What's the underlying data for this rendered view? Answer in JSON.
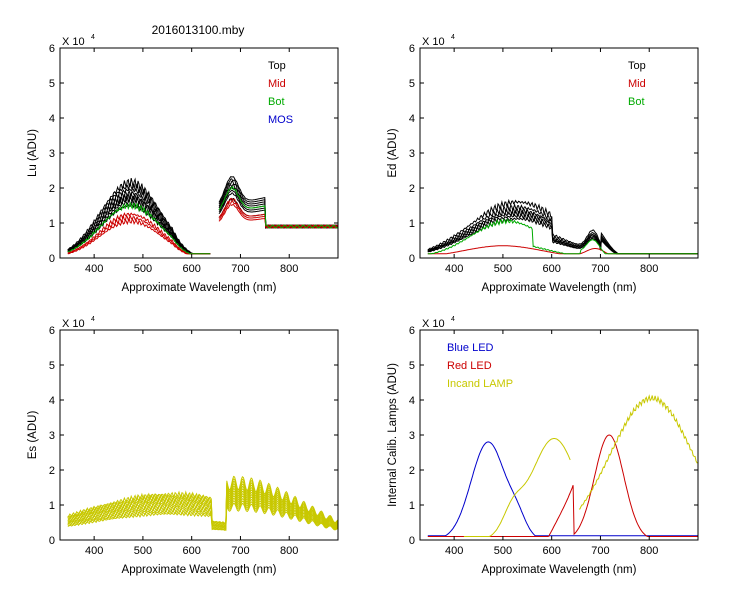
{
  "figure": {
    "title": "2016013100.mby",
    "colors": {
      "black": "#000000",
      "red": "#cc0000",
      "green": "#00aa00",
      "blue": "#0000cc",
      "yellow": "#c8c800"
    }
  },
  "chart_data": [
    {
      "id": "lu",
      "type": "line",
      "title": "2016013100.mby",
      "xlabel": "Approximate Wavelength (nm)",
      "ylabel": "Lu (ADU)",
      "exponent_label": "X 10",
      "exponent_power": "4",
      "xlim": [
        330,
        900
      ],
      "ylim": [
        0,
        6
      ],
      "xticks": [
        400,
        500,
        600,
        700,
        800
      ],
      "yticks": [
        0,
        1,
        2,
        3,
        4,
        5,
        6
      ],
      "legend": [
        {
          "label": "Top",
          "color": "#000000"
        },
        {
          "label": "Mid",
          "color": "#cc0000"
        },
        {
          "label": "Bot",
          "color": "#00aa00"
        },
        {
          "label": "MOS",
          "color": "#0000cc"
        }
      ],
      "series": [
        {
          "name": "Top",
          "color": "#000000",
          "kind": "lu",
          "scales": [
            2.15,
            2.05,
            1.95,
            1.85,
            1.75,
            1.7,
            1.6,
            1.5
          ],
          "red_scales": [
            1.05,
            1.15,
            1.2,
            1.25,
            1.3,
            1.35,
            1.4,
            1.45
          ]
        },
        {
          "name": "Mid",
          "color": "#cc0000",
          "kind": "lu",
          "scales": [
            1.25,
            1.15,
            1.05
          ],
          "red_scales": [
            0.95,
            1.0,
            1.05
          ]
        },
        {
          "name": "Bot",
          "color": "#00aa00",
          "kind": "lu",
          "scales": [
            1.5
          ],
          "red_scales": [
            1.25
          ]
        }
      ]
    },
    {
      "id": "ed",
      "type": "line",
      "xlabel": "Approximate Wavelength (nm)",
      "ylabel": "Ed  (ADU)",
      "exponent_label": "X 10",
      "exponent_power": "4",
      "xlim": [
        330,
        900
      ],
      "ylim": [
        0,
        6
      ],
      "xticks": [
        400,
        500,
        600,
        700,
        800
      ],
      "yticks": [
        0,
        1,
        2,
        3,
        4,
        5,
        6
      ],
      "legend": [
        {
          "label": "Top",
          "color": "#000000"
        },
        {
          "label": "Mid",
          "color": "#cc0000"
        },
        {
          "label": "Bot",
          "color": "#00aa00"
        }
      ],
      "series": [
        {
          "name": "Top",
          "color": "#000000",
          "kind": "ed",
          "scales": [
            1.6,
            1.45,
            1.35,
            1.28,
            1.2,
            1.12
          ]
        },
        {
          "name": "Mid",
          "color": "#cc0000",
          "kind": "ed_mid",
          "scales": [
            0.35
          ]
        },
        {
          "name": "Bot",
          "color": "#00aa00",
          "kind": "ed_bot",
          "scales": [
            1.05
          ]
        }
      ]
    },
    {
      "id": "es",
      "type": "line",
      "xlabel": "Approximate Wavelength (nm)",
      "ylabel": "Es  (ADU)",
      "exponent_label": "X 10",
      "exponent_power": "4",
      "xlim": [
        330,
        900
      ],
      "ylim": [
        0,
        6
      ],
      "xticks": [
        400,
        500,
        600,
        700,
        800
      ],
      "yticks": [
        0,
        1,
        2,
        3,
        4,
        5,
        6
      ],
      "legend": [],
      "series": [
        {
          "name": "Es",
          "color": "#c8c800",
          "kind": "es",
          "scales": [
            1.3,
            1.25,
            1.2,
            1.15,
            1.1,
            1.05,
            1.0,
            0.95,
            0.9,
            0.85,
            0.8,
            0.75
          ]
        }
      ]
    },
    {
      "id": "lamps",
      "type": "line",
      "xlabel": "Approximate Wavelength (nm)",
      "ylabel": "Internal Calib. Lamps (ADU)",
      "exponent_label": "X 10",
      "exponent_power": "4",
      "xlim": [
        330,
        900
      ],
      "ylim": [
        0,
        6
      ],
      "xticks": [
        400,
        500,
        600,
        700,
        800
      ],
      "yticks": [
        0,
        1,
        2,
        3,
        4,
        5,
        6
      ],
      "legend": [
        {
          "label": "Blue LED",
          "color": "#0000cc"
        },
        {
          "label": "Red LED",
          "color": "#cc0000"
        },
        {
          "label": "Incand LAMP",
          "color": "#c8c800"
        }
      ],
      "series": [
        {
          "name": "Blue LED",
          "color": "#0000cc",
          "kind": "blue_led",
          "scales": [
            2.8
          ]
        },
        {
          "name": "Red LED",
          "color": "#cc0000",
          "kind": "red_led",
          "scales": [
            3.0
          ]
        },
        {
          "name": "Incand LAMP",
          "color": "#c8c800",
          "kind": "lamp",
          "scales": [
            4.05
          ]
        }
      ]
    }
  ]
}
